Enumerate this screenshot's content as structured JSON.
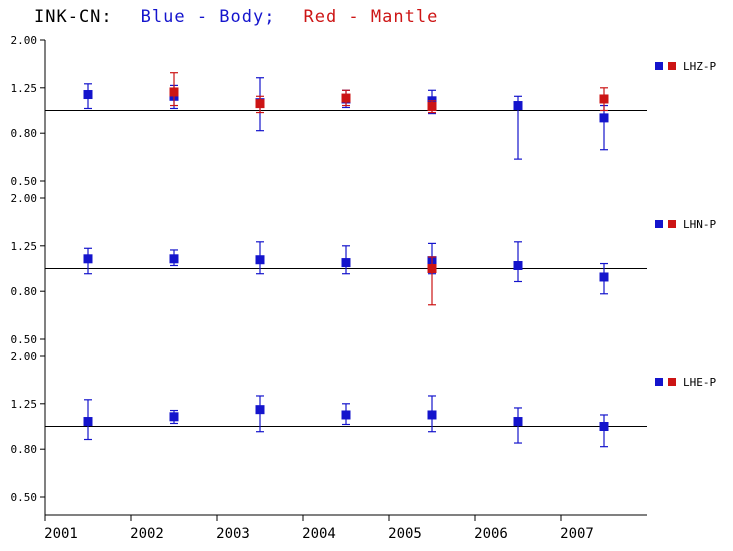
{
  "chart_data": {
    "type": "scatter",
    "title_parts": [
      {
        "text": "INK-CN:",
        "color": "#000000"
      },
      {
        "text": "Blue - Body;",
        "color": "#1515cd"
      },
      {
        "text": "Red - Mantle",
        "color": "#cd1515"
      }
    ],
    "x_ticks": [
      2001,
      2002,
      2003,
      2004,
      2005,
      2006,
      2007
    ],
    "x_range": [
      2001,
      2008
    ],
    "y_tick_labels": [
      "2.00",
      "1.25",
      "0.80",
      "0.50"
    ],
    "y_tick_values": [
      2.0,
      1.25,
      0.8,
      0.5
    ],
    "y_scale": "log",
    "grid": false,
    "legend_position": "right",
    "reference_line": 1.0,
    "legend_text_color": "#000000",
    "panels": [
      {
        "label": "LHZ-P",
        "series": [
          {
            "name": "Body",
            "color": "#1414cc",
            "points": [
              {
                "x": 2001.5,
                "y": 1.17,
                "lo": 1.02,
                "hi": 1.3
              },
              {
                "x": 2002.5,
                "y": 1.15,
                "lo": 1.02,
                "hi": 1.28
              },
              {
                "x": 2003.5,
                "y": 1.08,
                "lo": 0.82,
                "hi": 1.38
              },
              {
                "x": 2004.5,
                "y": 1.12,
                "lo": 1.03,
                "hi": 1.22
              },
              {
                "x": 2005.5,
                "y": 1.1,
                "lo": 0.97,
                "hi": 1.22
              },
              {
                "x": 2006.5,
                "y": 1.05,
                "lo": 0.62,
                "hi": 1.15
              },
              {
                "x": 2007.5,
                "y": 0.93,
                "lo": 0.68,
                "hi": 1.05
              }
            ]
          },
          {
            "name": "Mantle",
            "color": "#cc1414",
            "points": [
              {
                "x": 2002.5,
                "y": 1.2,
                "lo": 1.05,
                "hi": 1.45
              },
              {
                "x": 2003.5,
                "y": 1.07,
                "lo": 0.98,
                "hi": 1.15
              },
              {
                "x": 2004.5,
                "y": 1.13,
                "lo": 1.05,
                "hi": 1.22
              },
              {
                "x": 2005.5,
                "y": 1.04,
                "lo": 0.98,
                "hi": 1.1
              },
              {
                "x": 2007.5,
                "y": 1.12,
                "lo": 1.0,
                "hi": 1.25
              }
            ]
          }
        ]
      },
      {
        "label": "LHN-P",
        "series": [
          {
            "name": "Body",
            "color": "#1414cc",
            "points": [
              {
                "x": 2001.5,
                "y": 1.1,
                "lo": 0.95,
                "hi": 1.22
              },
              {
                "x": 2002.5,
                "y": 1.1,
                "lo": 1.03,
                "hi": 1.2
              },
              {
                "x": 2003.5,
                "y": 1.09,
                "lo": 0.95,
                "hi": 1.3
              },
              {
                "x": 2004.5,
                "y": 1.06,
                "lo": 0.95,
                "hi": 1.25
              },
              {
                "x": 2005.5,
                "y": 1.08,
                "lo": 0.95,
                "hi": 1.28
              },
              {
                "x": 2006.5,
                "y": 1.03,
                "lo": 0.88,
                "hi": 1.3
              },
              {
                "x": 2007.5,
                "y": 0.92,
                "lo": 0.78,
                "hi": 1.05
              }
            ]
          },
          {
            "name": "Mantle",
            "color": "#cc1414",
            "points": [
              {
                "x": 2005.5,
                "y": 1.0,
                "lo": 0.7,
                "hi": 1.12
              }
            ]
          }
        ]
      },
      {
        "label": "LHE-P",
        "series": [
          {
            "name": "Body",
            "color": "#1414cc",
            "points": [
              {
                "x": 2001.5,
                "y": 1.05,
                "lo": 0.88,
                "hi": 1.3
              },
              {
                "x": 2002.5,
                "y": 1.1,
                "lo": 1.03,
                "hi": 1.17
              },
              {
                "x": 2003.5,
                "y": 1.18,
                "lo": 0.95,
                "hi": 1.35
              },
              {
                "x": 2004.5,
                "y": 1.12,
                "lo": 1.02,
                "hi": 1.25
              },
              {
                "x": 2005.5,
                "y": 1.12,
                "lo": 0.95,
                "hi": 1.35
              },
              {
                "x": 2006.5,
                "y": 1.05,
                "lo": 0.85,
                "hi": 1.2
              },
              {
                "x": 2007.5,
                "y": 1.0,
                "lo": 0.82,
                "hi": 1.12
              }
            ]
          },
          {
            "name": "Mantle",
            "color": "#cc1414",
            "points": []
          }
        ]
      }
    ]
  }
}
